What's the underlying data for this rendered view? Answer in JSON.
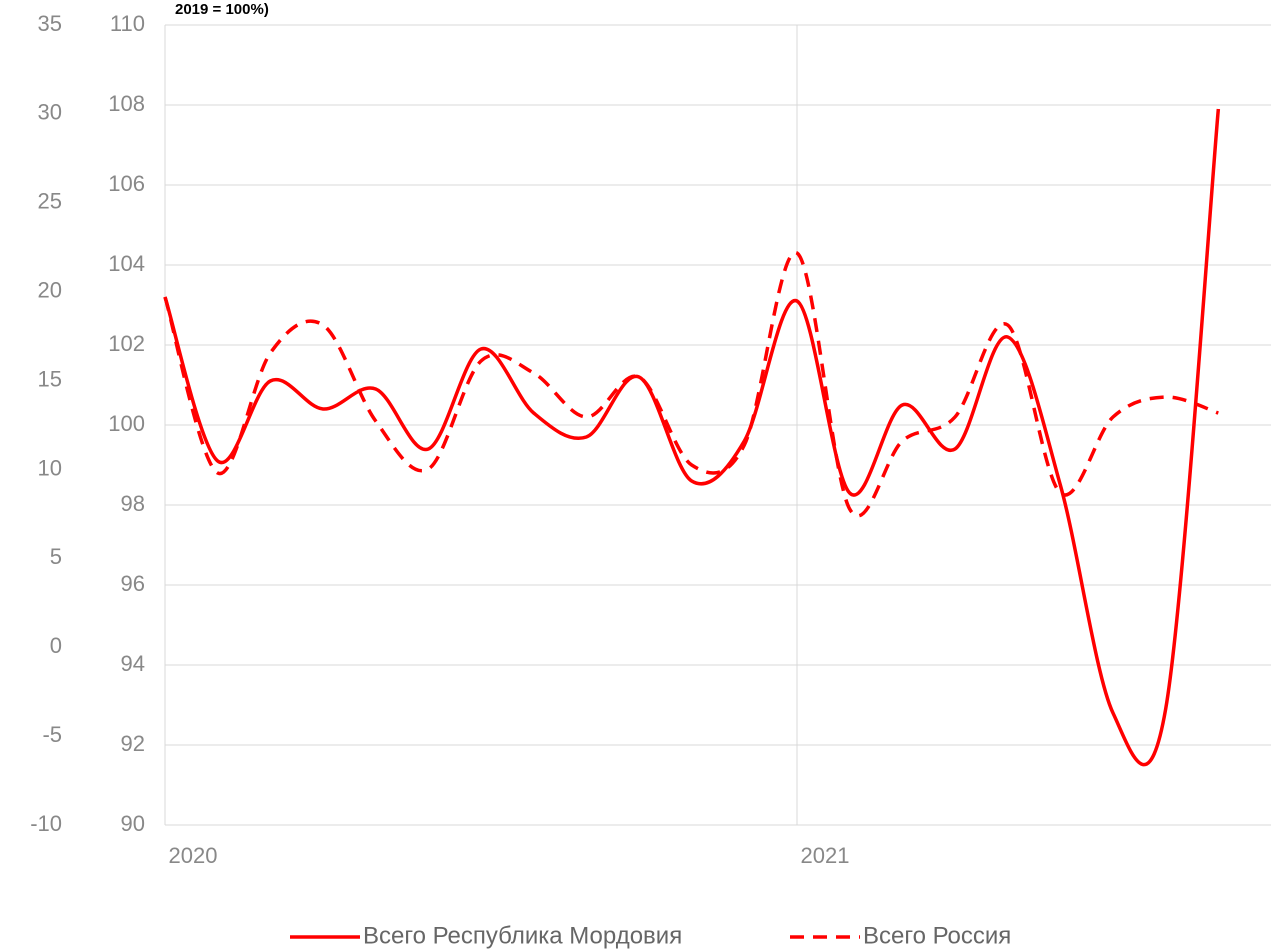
{
  "chart_data": {
    "type": "line",
    "title": "2019 = 100%)",
    "x": [
      0,
      1,
      2,
      3,
      4,
      5,
      6,
      7,
      8,
      9,
      10,
      11,
      12,
      13,
      14,
      15,
      16,
      17,
      18,
      19,
      20
    ],
    "xlim": [
      0,
      21
    ],
    "xticks": [
      {
        "value": 0,
        "label": "2020"
      },
      {
        "value": 12,
        "label": "2021"
      }
    ],
    "ylim": [
      90,
      110
    ],
    "yticks": [
      90,
      92,
      94,
      96,
      98,
      100,
      102,
      104,
      106,
      108,
      110
    ],
    "y2lim": [
      -10,
      35
    ],
    "y2ticks": [
      -10,
      -5,
      0,
      5,
      10,
      15,
      20,
      25,
      30,
      35
    ],
    "grid": true,
    "legend": "bottom",
    "series": [
      {
        "name": "Всего Республика Мордовия",
        "color": "#ff0000",
        "dash": "solid",
        "values": [
          103.2,
          99.1,
          101.1,
          100.4,
          100.9,
          99.4,
          101.9,
          100.3,
          99.7,
          101.2,
          98.6,
          99.6,
          103.1,
          98.3,
          100.5,
          99.4,
          102.2,
          98.5,
          92.8,
          92.9,
          107.9
        ]
      },
      {
        "name": "Всего Россия",
        "color": "#ff0000",
        "dash": "dashed",
        "values": [
          103.2,
          98.8,
          101.8,
          102.5,
          100.1,
          98.9,
          101.6,
          101.3,
          100.2,
          101.2,
          99.0,
          99.5,
          104.3,
          97.9,
          99.6,
          100.2,
          102.5,
          98.3,
          100.2,
          100.7,
          100.3
        ]
      }
    ]
  }
}
